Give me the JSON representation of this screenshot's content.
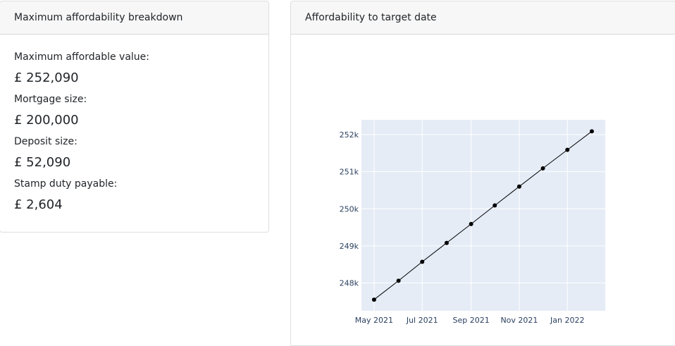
{
  "breakdown": {
    "title": "Maximum affordability breakdown",
    "items": [
      {
        "label": "Maximum affordable value:",
        "value": "£ 252,090"
      },
      {
        "label": "Mortgage size:",
        "value": "£ 200,000"
      },
      {
        "label": "Deposit size:",
        "value": "£ 52,090"
      },
      {
        "label": "Stamp duty payable:",
        "value": "£ 2,604"
      }
    ]
  },
  "chart_card": {
    "title": "Affordability to target date"
  },
  "chart_data": {
    "type": "line",
    "title": "",
    "xlabel": "",
    "ylabel": "",
    "x": [
      "2021-05-01",
      "2021-06-01",
      "2021-07-01",
      "2021-08-01",
      "2021-09-01",
      "2021-10-01",
      "2021-11-01",
      "2021-12-01",
      "2022-01-01",
      "2022-02-01"
    ],
    "series": [
      {
        "values": [
          247550,
          248060,
          248570,
          249080,
          249590,
          250090,
          250600,
          251090,
          251590,
          252090
        ]
      }
    ],
    "x_ticks": [
      {
        "date": "2021-05-01",
        "label": "May 2021"
      },
      {
        "date": "2021-07-01",
        "label": "Jul 2021"
      },
      {
        "date": "2021-09-01",
        "label": "Sep 2021"
      },
      {
        "date": "2021-11-01",
        "label": "Nov 2021"
      },
      {
        "date": "2022-01-01",
        "label": "Jan 2022"
      }
    ],
    "y_ticks": [
      {
        "value": 248000,
        "label": "248k"
      },
      {
        "value": 249000,
        "label": "249k"
      },
      {
        "value": 250000,
        "label": "250k"
      },
      {
        "value": 251000,
        "label": "251k"
      },
      {
        "value": 252000,
        "label": "252k"
      }
    ],
    "xlim": [
      "2021-04-15",
      "2022-02-18"
    ],
    "ylim": [
      247250,
      252400
    ],
    "grid": true,
    "colors": {
      "plot_bg": "#e5ecf6",
      "line": "#000000",
      "grid": "#ffffff",
      "tick_text": "#2a3f5f"
    }
  }
}
